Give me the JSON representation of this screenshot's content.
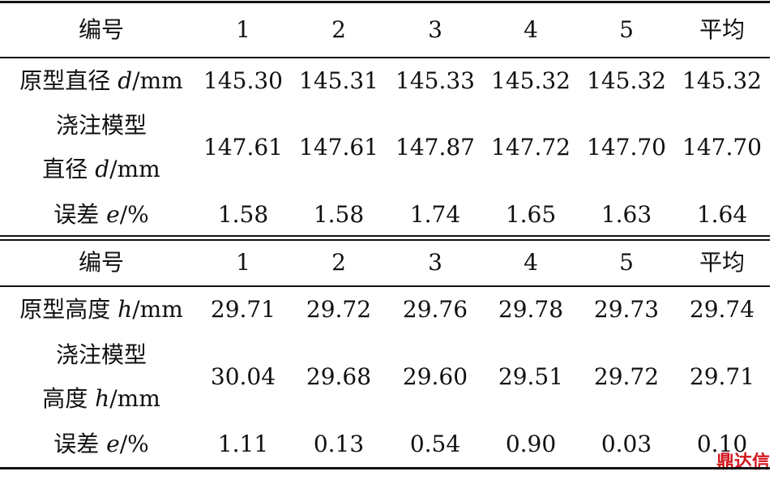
{
  "tables": [
    {
      "header": [
        "编号",
        "1",
        "2",
        "3",
        "4",
        "5",
        "平均"
      ],
      "rows": [
        {
          "label": [
            [
              "原型直径 ",
              "d",
              "/mm"
            ]
          ],
          "cells": [
            "145.30",
            "145.31",
            "145.33",
            "145.32",
            "145.32",
            "145.32"
          ]
        },
        {
          "label": [
            [
              "浇注模型"
            ],
            [
              "直径 ",
              "d",
              "/mm"
            ]
          ],
          "cells": [
            "147.61",
            "147.61",
            "147.87",
            "147.72",
            "147.70",
            "147.70"
          ]
        },
        {
          "label": [
            [
              "误差 ",
              "e",
              "/%"
            ]
          ],
          "cells": [
            "1.58",
            "1.58",
            "1.74",
            "1.65",
            "1.63",
            "1.64"
          ]
        }
      ]
    },
    {
      "header": [
        "编号",
        "1",
        "2",
        "3",
        "4",
        "5",
        "平均"
      ],
      "rows": [
        {
          "label": [
            [
              "原型高度 ",
              "h",
              "/mm"
            ]
          ],
          "cells": [
            "29.71",
            "29.72",
            "29.76",
            "29.78",
            "29.73",
            "29.74"
          ]
        },
        {
          "label": [
            [
              "浇注模型"
            ],
            [
              "高度 ",
              "h",
              "/mm"
            ]
          ],
          "cells": [
            "30.04",
            "29.68",
            "29.60",
            "29.51",
            "29.72",
            "29.71"
          ]
        },
        {
          "label": [
            [
              "误差 ",
              "e",
              "/%"
            ]
          ],
          "cells": [
            "1.11",
            "0.13",
            "0.54",
            "0.90",
            "0.03",
            "0.10"
          ]
        }
      ]
    }
  ],
  "watermark": "鼎达信"
}
